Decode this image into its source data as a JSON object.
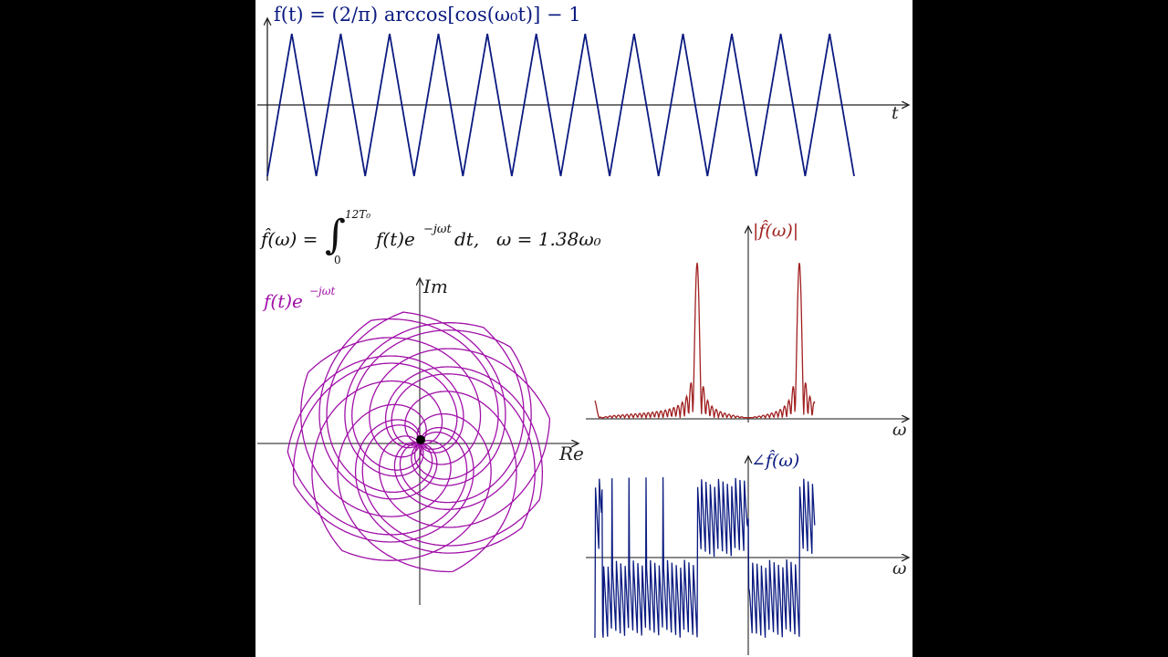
{
  "colors": {
    "time_signal": "#0a1a80",
    "magnitude": "#a02020",
    "phase": "#0a1a80",
    "winding": "#a010a8",
    "axis": "#222222",
    "background": "#ffffff",
    "margin": "#000000"
  },
  "top_plot": {
    "formula": "f(t) = (2/π) arccos[cos(ω₀t)] − 1",
    "x_label": "t"
  },
  "transform": {
    "formula": "f̂(ω) = ∫₀^{12T₀} f(t) e^{−jωt} dt,  ω = 1.38ω₀",
    "integrand_lhs": "f̂(ω) =",
    "upper_limit": "12T₀",
    "lower_limit": "0",
    "integrand": "f(t)e",
    "exponent": "−jωt",
    "differential": "dt,",
    "omega_value": "ω = 1.38ω₀"
  },
  "winding_plot": {
    "label": "f(t)e",
    "label_exp": "−jωt",
    "x_label": "Re",
    "y_label": "Im"
  },
  "magnitude_plot": {
    "label": "|f̂(ω)|",
    "x_label": "ω"
  },
  "phase_plot": {
    "label": "∠f̂(ω)",
    "x_label": "ω"
  },
  "chart_data": [
    {
      "type": "line",
      "title": "f(t) = (2/π) arccos[cos(ω₀t)] − 1",
      "xlabel": "t",
      "ylabel": "f(t)",
      "description": "Triangle wave, amplitude 1, 12 periods from t=0 to t=12T₀, starting at minimum -1",
      "periods": 12,
      "ylim": [
        -1,
        1
      ],
      "x": [
        0,
        0.5,
        1,
        1.5,
        2,
        2.5,
        3,
        3.5,
        4,
        4.5,
        5,
        5.5,
        6,
        6.5,
        7,
        7.5,
        8,
        8.5,
        9,
        9.5,
        10,
        10.5,
        11,
        11.5,
        12
      ],
      "values": [
        -1,
        1,
        -1,
        1,
        -1,
        1,
        -1,
        1,
        -1,
        1,
        -1,
        1,
        -1,
        1,
        -1,
        1,
        -1,
        1,
        -1,
        1,
        -1,
        1,
        -1,
        1,
        -1
      ]
    },
    {
      "type": "line",
      "title": "f(t)e^{−jωt}",
      "xlabel": "Re",
      "ylabel": "Im",
      "description": "Parametric winding curve in the complex plane with ω = 1.38ω₀, rosette pattern centred at origin (black dot marks centre of mass near origin)",
      "omega_ratio": 1.38
    },
    {
      "type": "line",
      "title": "|f̂(ω)|",
      "xlabel": "ω",
      "description": "Magnitude spectrum with two dominant peaks symmetric around a point near the vertical axis, small side bumps at lower ω",
      "peaks_relative": [
        {
          "position": "left of axis",
          "height": 1.0
        },
        {
          "position": "right of axis",
          "height": 1.0
        },
        {
          "position": "far left",
          "height": 0.1
        },
        {
          "position": "far-far left",
          "height": 0.03
        }
      ]
    },
    {
      "type": "line",
      "title": "∠f̂(ω)",
      "xlabel": "ω",
      "description": "Phase spectrum oscillating rapidly, mostly negative with positive bands near the vertical axis"
    }
  ]
}
